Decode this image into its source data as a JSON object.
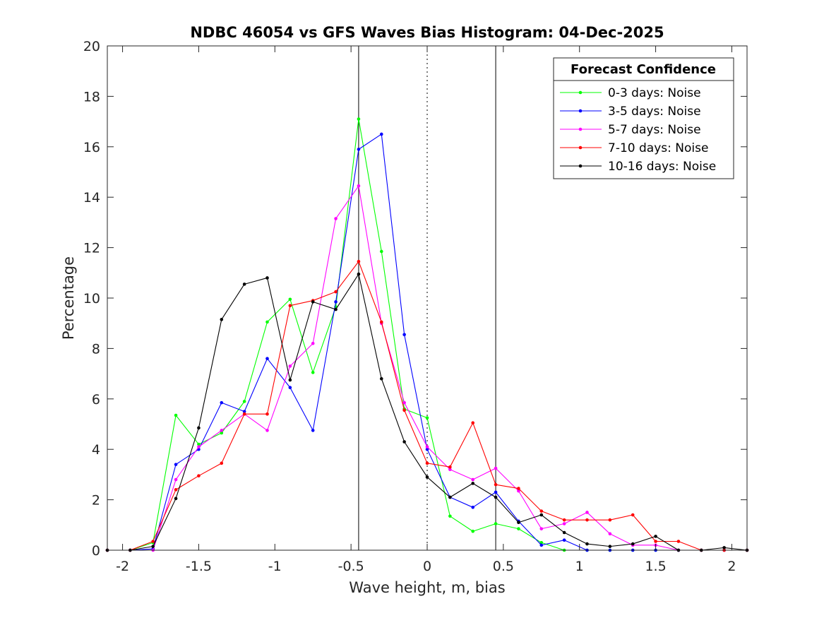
{
  "chart_data": {
    "type": "line",
    "title": "NDBC 46054 vs GFS Waves Bias Histogram: 04-Dec-2025",
    "xlabel": "Wave height, m, bias",
    "ylabel": "Percentage",
    "xlim": [
      -2.1,
      2.1
    ],
    "ylim": [
      0,
      20
    ],
    "xticks": [
      -2,
      -1.5,
      -1,
      -0.5,
      0,
      0.5,
      1,
      1.5,
      2
    ],
    "xtick_labels": [
      "-2",
      "-1.5",
      "-1",
      "-0.5",
      "0",
      "0.5",
      "1",
      "1.5",
      "2"
    ],
    "yticks": [
      0,
      2,
      4,
      6,
      8,
      10,
      12,
      14,
      16,
      18,
      20
    ],
    "ytick_labels": [
      "0",
      "2",
      "4",
      "6",
      "8",
      "10",
      "12",
      "14",
      "16",
      "18",
      "20"
    ],
    "reference_lines": [
      {
        "x": -0.45,
        "style": "solid"
      },
      {
        "x": 0,
        "style": "dotted"
      },
      {
        "x": 0.45,
        "style": "solid"
      }
    ],
    "legend": {
      "title": "Forecast Confidence",
      "position": "top-right"
    },
    "x": [
      -2.1,
      -1.95,
      -1.8,
      -1.65,
      -1.5,
      -1.35,
      -1.2,
      -1.05,
      -0.9,
      -0.75,
      -0.6,
      -0.45,
      -0.3,
      -0.15,
      0,
      0.15,
      0.3,
      0.45,
      0.6,
      0.75,
      0.9,
      1.05,
      1.2,
      1.35,
      1.5,
      1.65,
      1.8,
      1.95,
      2.1
    ],
    "series": [
      {
        "name": "0-3 days: Noise",
        "color": "#00ff00",
        "values": [
          0,
          0,
          0.3,
          5.35,
          4.2,
          4.65,
          5.9,
          9.05,
          9.95,
          7.05,
          9.65,
          17.1,
          11.85,
          5.6,
          5.25,
          1.35,
          0.75,
          1.05,
          0.85,
          0.3,
          0,
          0,
          0,
          0,
          0,
          0,
          0,
          0,
          0
        ]
      },
      {
        "name": "3-5 days: Noise",
        "color": "#0000ff",
        "values": [
          0,
          0,
          0.05,
          3.4,
          4.0,
          5.85,
          5.5,
          7.6,
          6.45,
          4.75,
          9.85,
          15.9,
          16.5,
          8.55,
          4.0,
          2.1,
          1.7,
          2.3,
          1.15,
          0.2,
          0.4,
          0,
          0,
          0,
          0,
          0,
          0,
          0,
          0
        ]
      },
      {
        "name": "5-7 days: Noise",
        "color": "#ff00ff",
        "values": [
          0,
          0,
          0,
          2.8,
          4.1,
          4.75,
          5.4,
          4.75,
          7.3,
          8.2,
          13.15,
          14.45,
          9.0,
          5.85,
          4.1,
          3.2,
          2.8,
          3.25,
          2.35,
          0.85,
          1.05,
          1.5,
          0.65,
          0.2,
          0.2,
          0,
          0,
          0,
          0
        ]
      },
      {
        "name": "7-10 days: Noise",
        "color": "#ff0000",
        "values": [
          0,
          0,
          0.35,
          2.4,
          2.95,
          3.45,
          5.4,
          5.4,
          9.7,
          9.9,
          10.25,
          11.45,
          9.05,
          5.55,
          3.45,
          3.3,
          5.05,
          2.6,
          2.45,
          1.55,
          1.2,
          1.2,
          1.2,
          1.4,
          0.35,
          0.35,
          0,
          0,
          0
        ]
      },
      {
        "name": "10-16 days: Noise",
        "color": "#000000",
        "values": [
          0,
          0,
          0.15,
          2.05,
          4.85,
          9.15,
          10.55,
          10.8,
          6.75,
          9.85,
          9.55,
          10.95,
          6.8,
          4.3,
          2.9,
          2.1,
          2.65,
          2.1,
          1.1,
          1.4,
          0.7,
          0.25,
          0.15,
          0.25,
          0.55,
          0,
          0,
          0.1,
          0
        ]
      }
    ]
  }
}
